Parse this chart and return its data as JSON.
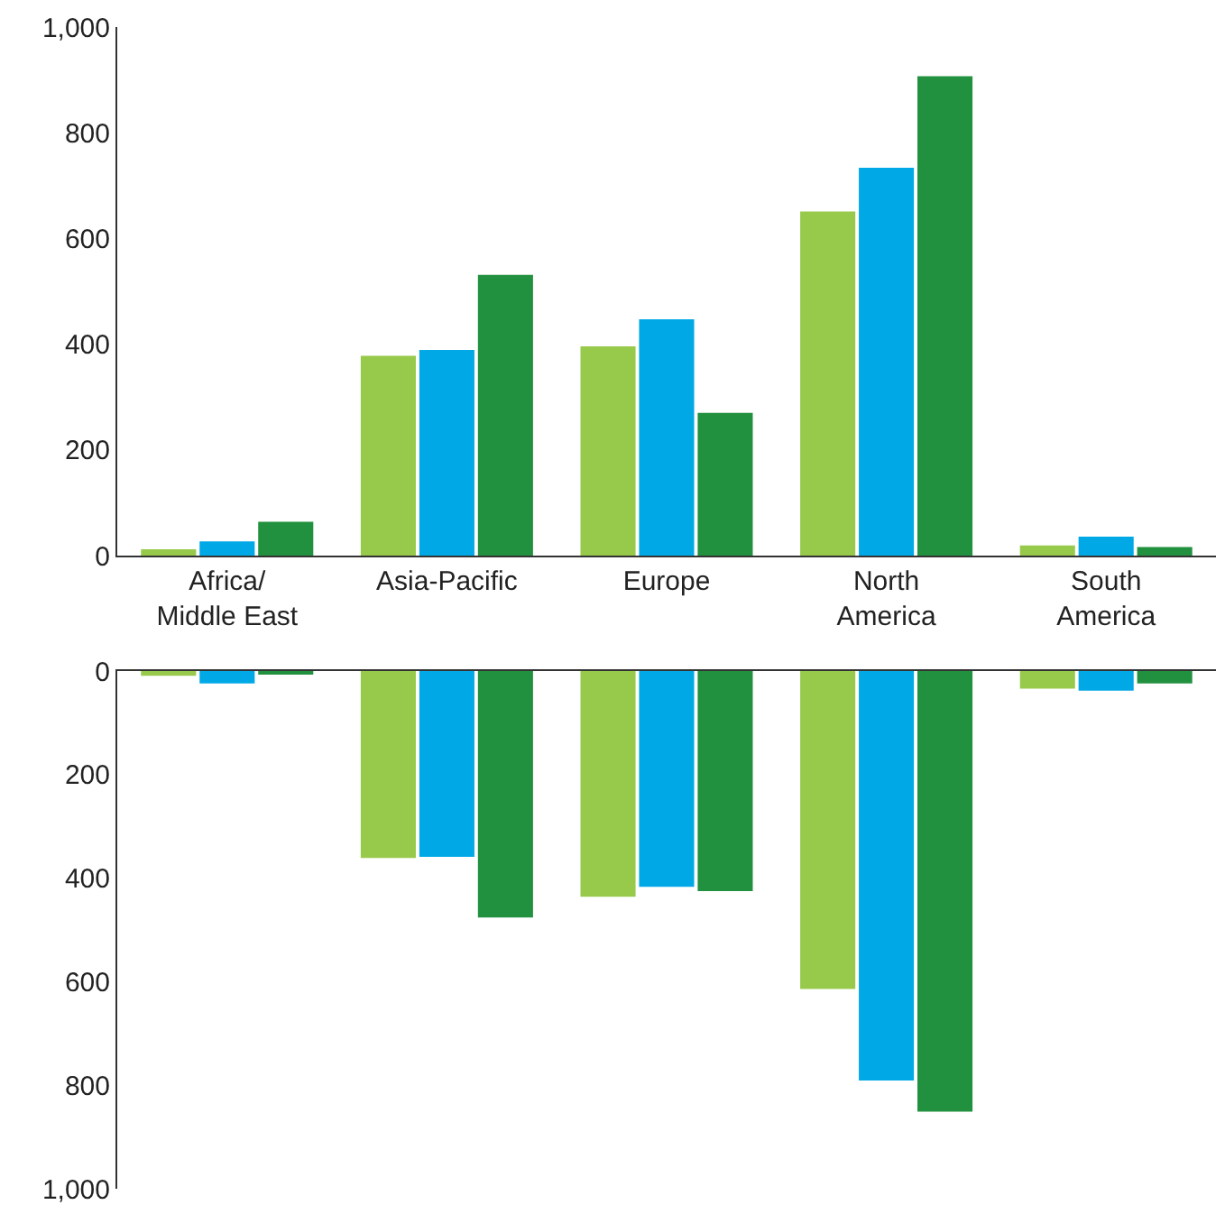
{
  "chart_data": [
    {
      "type": "bar",
      "categories": [
        "Africa/\nMiddle East",
        "Asia-Pacific",
        "Europe",
        "North\nAmerica",
        "South\nAmerica"
      ],
      "series": [
        {
          "color": "#97c94a",
          "values": [
            12,
            378,
            396,
            651,
            19
          ]
        },
        {
          "color": "#00a9e6",
          "values": [
            27,
            389,
            447,
            734,
            36
          ]
        },
        {
          "color": "#22913f",
          "values": [
            64,
            531,
            270,
            907,
            16
          ]
        }
      ],
      "ylim": [
        0,
        1000
      ],
      "yticks": [
        0,
        200,
        400,
        600,
        800,
        {
          "value": 1000,
          "label": "1,000"
        }
      ],
      "grid": false
    },
    {
      "type": "bar",
      "categories": [
        null,
        null,
        null,
        null,
        null
      ],
      "series": [
        {
          "color": "#97c94a",
          "values": [
            9,
            361,
            436,
            614,
            34
          ]
        },
        {
          "color": "#00a9e6",
          "values": [
            24,
            359,
            417,
            791,
            38
          ]
        },
        {
          "color": "#22913f",
          "values": [
            7,
            476,
            425,
            851,
            24
          ]
        }
      ],
      "ylim": [
        1000,
        0
      ],
      "yticks": [
        0,
        200,
        400,
        600,
        800,
        {
          "value": 1000,
          "label": "1,000"
        }
      ],
      "tick_labels": "y",
      "grid": false
    }
  ]
}
